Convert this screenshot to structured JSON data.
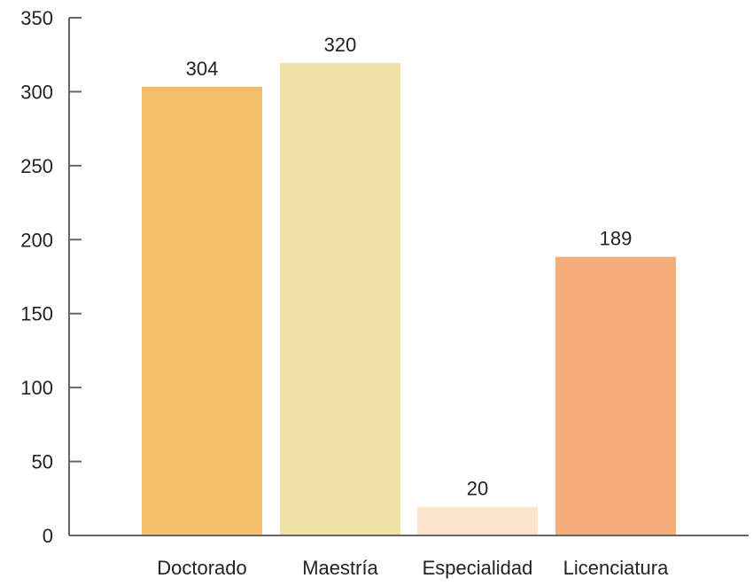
{
  "chart_data": {
    "type": "bar",
    "title": "",
    "xlabel": "",
    "ylabel": "",
    "categories": [
      "Doctorado",
      "Maestría",
      "Especialidad",
      "Licenciatura"
    ],
    "values": [
      304,
      320,
      20,
      189
    ],
    "data_labels": [
      "304",
      "320",
      "20",
      "189"
    ],
    "colors": [
      "#F4BF69",
      "#F0E2A6",
      "#FCE6CB",
      "#F5AD7A"
    ],
    "ylim": [
      0,
      350
    ],
    "yticks": [
      0,
      50,
      100,
      150,
      200,
      250,
      300,
      350
    ],
    "ytick_labels": [
      "0",
      "50",
      "100",
      "150",
      "200",
      "250",
      "300",
      "350"
    ],
    "grid": false,
    "legend": "none"
  }
}
